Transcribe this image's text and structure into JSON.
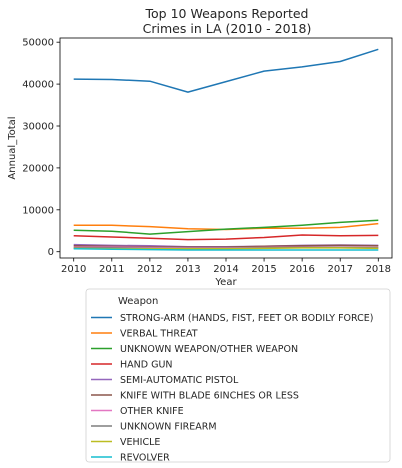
{
  "chart_data": {
    "type": "line",
    "title_lines": [
      "Top 10 Weapons Reported",
      "Crimes in LA (2010 - 2018)"
    ],
    "xlabel": "Year",
    "ylabel": "Annual_Total",
    "x": [
      2010,
      2011,
      2012,
      2013,
      2014,
      2015,
      2016,
      2017,
      2018
    ],
    "ylim": [
      -1500,
      51000
    ],
    "yticks": [
      0,
      10000,
      20000,
      30000,
      40000,
      50000
    ],
    "grid": false,
    "legend": {
      "title": "Weapon",
      "placement": "below"
    },
    "series": [
      {
        "name": "STRONG-ARM (HANDS, FIST, FEET OR BODILY FORCE)",
        "color": "#1f77b4",
        "values": [
          41200,
          41100,
          40700,
          38100,
          40600,
          43100,
          44100,
          45400,
          48300
        ]
      },
      {
        "name": "VERBAL THREAT",
        "color": "#ff7f0e",
        "values": [
          6300,
          6300,
          6000,
          5500,
          5300,
          5600,
          5600,
          5800,
          6700
        ]
      },
      {
        "name": "UNKNOWN WEAPON/OTHER WEAPON",
        "color": "#2ca02c",
        "values": [
          5100,
          4900,
          4200,
          4800,
          5400,
          5800,
          6300,
          7000,
          7500
        ]
      },
      {
        "name": "HAND GUN",
        "color": "#d62728",
        "values": [
          3800,
          3500,
          3200,
          2900,
          3000,
          3400,
          4000,
          3800,
          3900
        ]
      },
      {
        "name": "SEMI-AUTOMATIC PISTOL",
        "color": "#9467bd",
        "values": [
          1700,
          1500,
          1400,
          1200,
          1200,
          1300,
          1500,
          1600,
          1500
        ]
      },
      {
        "name": "KNIFE WITH BLADE 6INCHES OR LESS",
        "color": "#8c564b",
        "values": [
          1400,
          1300,
          1200,
          1100,
          1100,
          1300,
          1400,
          1500,
          1400
        ]
      },
      {
        "name": "OTHER KNIFE",
        "color": "#e377c2",
        "values": [
          1100,
          1100,
          1000,
          900,
          900,
          1000,
          1100,
          1100,
          1000
        ]
      },
      {
        "name": "UNKNOWN FIREARM",
        "color": "#7f7f7f",
        "values": [
          900,
          900,
          800,
          800,
          800,
          900,
          1000,
          1000,
          900
        ]
      },
      {
        "name": "VEHICLE",
        "color": "#bcbd22",
        "values": [
          800,
          700,
          700,
          700,
          700,
          800,
          900,
          900,
          800
        ]
      },
      {
        "name": "REVOLVER",
        "color": "#17becf",
        "values": [
          700,
          600,
          500,
          400,
          400,
          400,
          400,
          400,
          400
        ]
      }
    ]
  }
}
